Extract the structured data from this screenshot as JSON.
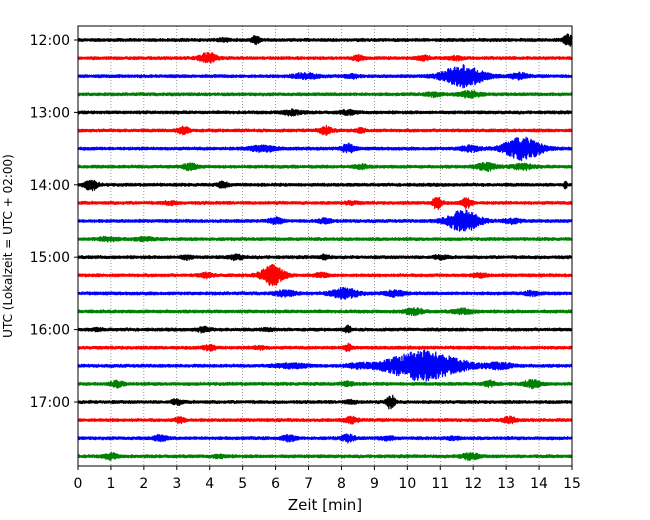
{
  "chart_data": {
    "type": "line",
    "title": "",
    "xlabel": "Zeit  [min]",
    "ylabel": "UTC (Lokalzeit = UTC + 02:00)",
    "xlim": [
      0,
      15
    ],
    "x_ticks": [
      "0",
      "1",
      "2",
      "3",
      "4",
      "5",
      "6",
      "7",
      "8",
      "9",
      "10",
      "11",
      "12",
      "13",
      "14",
      "15"
    ],
    "y_tick_labels": [
      "12:00",
      "13:00",
      "14:00",
      "15:00",
      "16:00",
      "17:00"
    ],
    "grid": "vertical dotted lines at every minute",
    "trace_interval_min": 15,
    "start_time": "12:00",
    "end_time": "17:45",
    "color_cycle": [
      "#000000",
      "#ff0000",
      "#0000ff",
      "#008000"
    ],
    "series": [
      {
        "start": "12:00",
        "events": [
          {
            "t": 5.4,
            "amp": 0.45,
            "w": 0.12
          },
          {
            "t": 14.9,
            "amp": 0.6,
            "w": 0.15
          },
          {
            "t": 4.4,
            "amp": 0.15,
            "w": 0.2
          }
        ]
      },
      {
        "start": "12:15",
        "events": [
          {
            "t": 3.95,
            "amp": 0.55,
            "w": 0.25
          },
          {
            "t": 8.5,
            "amp": 0.3,
            "w": 0.15
          },
          {
            "t": 10.5,
            "amp": 0.2,
            "w": 0.2
          },
          {
            "t": 11.5,
            "amp": 0.2,
            "w": 0.2
          }
        ]
      },
      {
        "start": "12:30",
        "events": [
          {
            "t": 11.7,
            "amp": 1.15,
            "w": 0.6
          },
          {
            "t": 6.9,
            "amp": 0.28,
            "w": 0.4
          },
          {
            "t": 8.3,
            "amp": 0.22,
            "w": 0.2
          },
          {
            "t": 13.4,
            "amp": 0.3,
            "w": 0.25
          }
        ]
      },
      {
        "start": "12:45",
        "events": [
          {
            "t": 10.8,
            "amp": 0.25,
            "w": 0.2
          },
          {
            "t": 11.9,
            "amp": 0.35,
            "w": 0.3
          }
        ]
      },
      {
        "start": "13:00",
        "events": [
          {
            "t": 6.5,
            "amp": 0.25,
            "w": 0.3
          },
          {
            "t": 8.2,
            "amp": 0.2,
            "w": 0.25
          }
        ]
      },
      {
        "start": "13:15",
        "events": [
          {
            "t": 3.2,
            "amp": 0.35,
            "w": 0.2
          },
          {
            "t": 7.5,
            "amp": 0.4,
            "w": 0.2
          },
          {
            "t": 8.6,
            "amp": 0.2,
            "w": 0.15
          }
        ]
      },
      {
        "start": "13:30",
        "events": [
          {
            "t": 13.5,
            "amp": 1.2,
            "w": 0.55
          },
          {
            "t": 5.6,
            "amp": 0.3,
            "w": 0.4
          },
          {
            "t": 8.2,
            "amp": 0.45,
            "w": 0.2
          },
          {
            "t": 11.9,
            "amp": 0.28,
            "w": 0.3
          }
        ]
      },
      {
        "start": "13:45",
        "events": [
          {
            "t": 3.4,
            "amp": 0.35,
            "w": 0.2
          },
          {
            "t": 12.4,
            "amp": 0.4,
            "w": 0.3
          },
          {
            "t": 13.5,
            "amp": 0.3,
            "w": 0.3
          },
          {
            "t": 8.6,
            "amp": 0.2,
            "w": 0.2
          }
        ]
      },
      {
        "start": "14:00",
        "events": [
          {
            "t": 0.4,
            "amp": 0.55,
            "w": 0.2
          },
          {
            "t": 4.4,
            "amp": 0.3,
            "w": 0.15
          },
          {
            "t": 14.8,
            "amp": 0.35,
            "w": 0.05
          }
        ]
      },
      {
        "start": "14:15",
        "events": [
          {
            "t": 10.9,
            "amp": 0.6,
            "w": 0.15
          },
          {
            "t": 11.8,
            "amp": 0.55,
            "w": 0.15
          },
          {
            "t": 2.8,
            "amp": 0.15,
            "w": 0.2
          },
          {
            "t": 8.3,
            "amp": 0.15,
            "w": 0.2
          }
        ]
      },
      {
        "start": "14:30",
        "events": [
          {
            "t": 11.7,
            "amp": 1.1,
            "w": 0.5
          },
          {
            "t": 6.0,
            "amp": 0.3,
            "w": 0.2
          },
          {
            "t": 7.5,
            "amp": 0.25,
            "w": 0.2
          },
          {
            "t": 13.2,
            "amp": 0.25,
            "w": 0.25
          }
        ]
      },
      {
        "start": "14:45",
        "events": [
          {
            "t": 0.9,
            "amp": 0.2,
            "w": 0.3
          },
          {
            "t": 2.0,
            "amp": 0.15,
            "w": 0.3
          }
        ]
      },
      {
        "start": "15:00",
        "events": [
          {
            "t": 3.3,
            "amp": 0.2,
            "w": 0.15
          },
          {
            "t": 4.8,
            "amp": 0.25,
            "w": 0.2
          },
          {
            "t": 7.5,
            "amp": 0.22,
            "w": 0.15
          },
          {
            "t": 11.0,
            "amp": 0.18,
            "w": 0.2
          }
        ]
      },
      {
        "start": "15:15",
        "events": [
          {
            "t": 5.9,
            "amp": 1.05,
            "w": 0.35
          },
          {
            "t": 3.9,
            "amp": 0.25,
            "w": 0.2
          },
          {
            "t": 7.4,
            "amp": 0.2,
            "w": 0.2
          },
          {
            "t": 12.2,
            "amp": 0.2,
            "w": 0.2
          }
        ]
      },
      {
        "start": "15:30",
        "events": [
          {
            "t": 8.1,
            "amp": 0.55,
            "w": 0.4
          },
          {
            "t": 6.3,
            "amp": 0.3,
            "w": 0.3
          },
          {
            "t": 9.6,
            "amp": 0.3,
            "w": 0.3
          },
          {
            "t": 13.8,
            "amp": 0.25,
            "w": 0.2
          }
        ]
      },
      {
        "start": "15:45",
        "events": [
          {
            "t": 10.2,
            "amp": 0.3,
            "w": 0.3
          },
          {
            "t": 11.7,
            "amp": 0.25,
            "w": 0.3
          }
        ]
      },
      {
        "start": "16:00",
        "events": [
          {
            "t": 3.8,
            "amp": 0.25,
            "w": 0.2
          },
          {
            "t": 8.2,
            "amp": 0.35,
            "w": 0.1
          },
          {
            "t": 0.6,
            "amp": 0.12,
            "w": 0.15
          },
          {
            "t": 5.8,
            "amp": 0.12,
            "w": 0.2
          }
        ]
      },
      {
        "start": "16:15",
        "events": [
          {
            "t": 4.0,
            "amp": 0.28,
            "w": 0.2
          },
          {
            "t": 8.2,
            "amp": 0.4,
            "w": 0.1
          },
          {
            "t": 5.5,
            "amp": 0.15,
            "w": 0.2
          }
        ]
      },
      {
        "start": "16:30",
        "events": [
          {
            "t": 10.5,
            "amp": 1.6,
            "w": 1.1
          },
          {
            "t": 6.5,
            "amp": 0.22,
            "w": 0.5
          },
          {
            "t": 8.5,
            "amp": 0.18,
            "w": 0.4
          },
          {
            "t": 12.8,
            "amp": 0.3,
            "w": 0.4
          }
        ]
      },
      {
        "start": "16:45",
        "events": [
          {
            "t": 1.2,
            "amp": 0.3,
            "w": 0.2
          },
          {
            "t": 13.8,
            "amp": 0.35,
            "w": 0.25
          },
          {
            "t": 12.5,
            "amp": 0.25,
            "w": 0.2
          },
          {
            "t": 8.2,
            "amp": 0.2,
            "w": 0.2
          }
        ]
      },
      {
        "start": "17:00",
        "events": [
          {
            "t": 9.5,
            "amp": 0.8,
            "w": 0.12
          },
          {
            "t": 3.0,
            "amp": 0.3,
            "w": 0.15
          },
          {
            "t": 8.3,
            "amp": 0.15,
            "w": 0.2
          }
        ]
      },
      {
        "start": "17:15",
        "events": [
          {
            "t": 3.1,
            "amp": 0.3,
            "w": 0.15
          },
          {
            "t": 8.3,
            "amp": 0.3,
            "w": 0.2
          },
          {
            "t": 13.1,
            "amp": 0.3,
            "w": 0.2
          }
        ]
      },
      {
        "start": "17:30",
        "events": [
          {
            "t": 2.5,
            "amp": 0.3,
            "w": 0.2
          },
          {
            "t": 6.4,
            "amp": 0.3,
            "w": 0.2
          },
          {
            "t": 8.2,
            "amp": 0.35,
            "w": 0.2
          },
          {
            "t": 9.4,
            "amp": 0.2,
            "w": 0.2
          },
          {
            "t": 11.4,
            "amp": 0.15,
            "w": 0.2
          }
        ]
      },
      {
        "start": "17:45",
        "events": [
          {
            "t": 1.0,
            "amp": 0.3,
            "w": 0.2
          },
          {
            "t": 11.9,
            "amp": 0.35,
            "w": 0.25
          },
          {
            "t": 4.3,
            "amp": 0.15,
            "w": 0.2
          }
        ]
      }
    ]
  }
}
